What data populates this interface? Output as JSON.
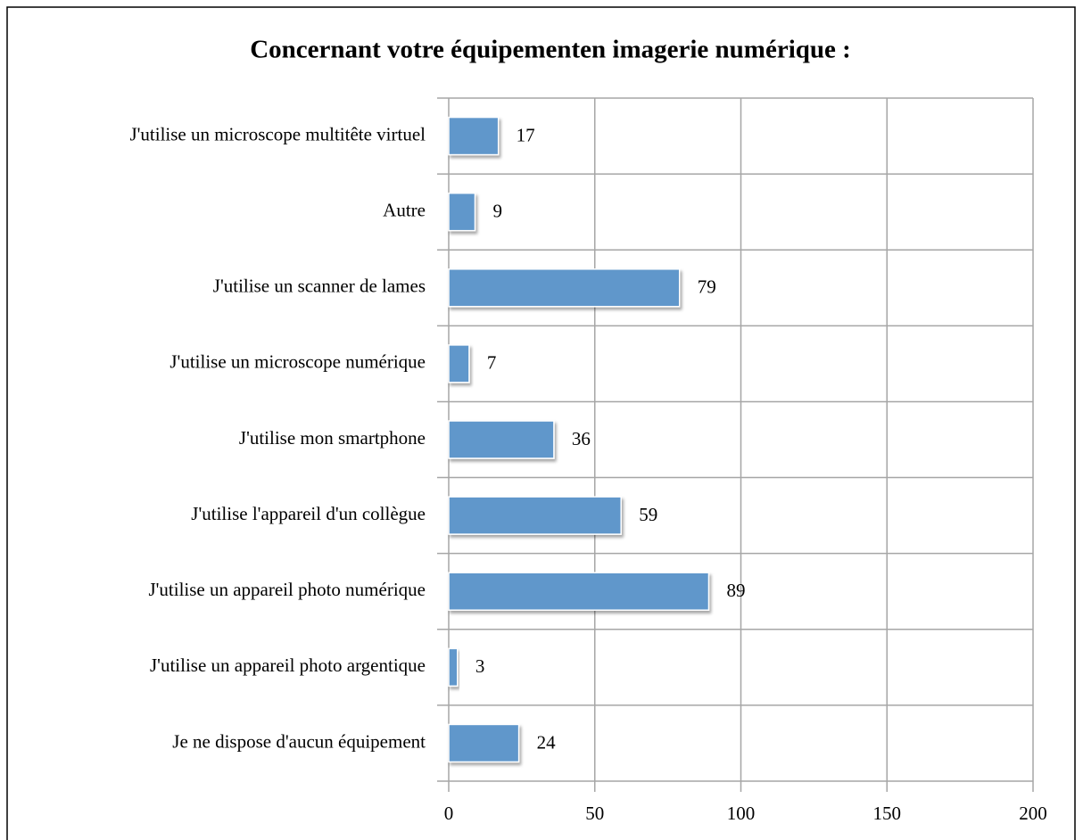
{
  "chart_data": {
    "type": "bar",
    "orientation": "horizontal",
    "title": "Concernant votre équipementen imagerie numérique :",
    "categories": [
      "J'utilise un microscope multitête virtuel",
      "Autre",
      "J'utilise un scanner de lames",
      "J'utilise un microscope numérique",
      "J'utilise mon smartphone",
      "J'utilise l'appareil d'un collègue",
      "J'utilise un appareil photo numérique",
      "J'utilise un appareil photo argentique",
      "Je ne dispose d'aucun équipement"
    ],
    "values": [
      17,
      9,
      79,
      7,
      36,
      59,
      89,
      3,
      24
    ],
    "color": "#6097cb",
    "xlim": [
      0,
      200
    ],
    "xticks": [
      0,
      50,
      100,
      150,
      200
    ],
    "grid": true
  }
}
